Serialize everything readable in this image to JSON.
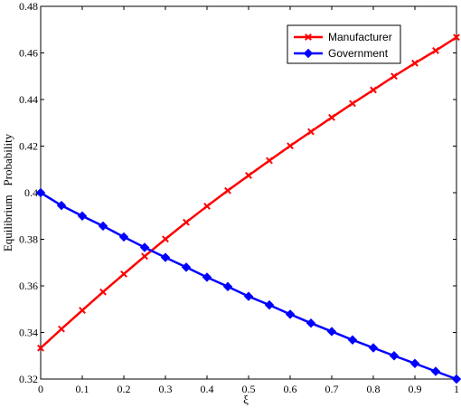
{
  "chart_data": {
    "type": "line",
    "xlabel": "ξ",
    "ylabel": "Equilibrium   Probability",
    "xlim": [
      0,
      1
    ],
    "ylim": [
      0.32,
      0.48
    ],
    "x_ticks": [
      "0",
      "0.1",
      "0.2",
      "0.3",
      "0.4",
      "0.5",
      "0.6",
      "0.7",
      "0.8",
      "0.9",
      "1"
    ],
    "y_ticks": [
      "0.32",
      "0.34",
      "0.36",
      "0.38",
      "0.4",
      "0.42",
      "0.44",
      "0.46",
      "0.48"
    ],
    "grid": false,
    "legend_position": "top-right",
    "x": [
      0,
      0.05,
      0.1,
      0.15,
      0.2,
      0.25,
      0.3,
      0.35,
      0.4,
      0.45,
      0.5,
      0.55,
      0.6,
      0.65,
      0.7,
      0.75,
      0.8,
      0.85,
      0.9,
      0.95,
      1
    ],
    "series": [
      {
        "name": "Manufacturer",
        "color": "#ff0000",
        "marker": "x",
        "values": [
          0.3333,
          0.3415,
          0.3495,
          0.3574,
          0.3651,
          0.3727,
          0.3801,
          0.3873,
          0.3942,
          0.4009,
          0.4074,
          0.4138,
          0.4201,
          0.4262,
          0.4323,
          0.4383,
          0.4441,
          0.45,
          0.4556,
          0.461,
          0.4667
        ]
      },
      {
        "name": "Government",
        "color": "#0000ff",
        "marker": "diamond",
        "values": [
          0.4,
          0.3945,
          0.39,
          0.3857,
          0.381,
          0.3765,
          0.3722,
          0.368,
          0.3637,
          0.3597,
          0.3555,
          0.3518,
          0.3478,
          0.344,
          0.3404,
          0.3368,
          0.3334,
          0.33,
          0.3267,
          0.3233,
          0.32
        ]
      }
    ]
  }
}
